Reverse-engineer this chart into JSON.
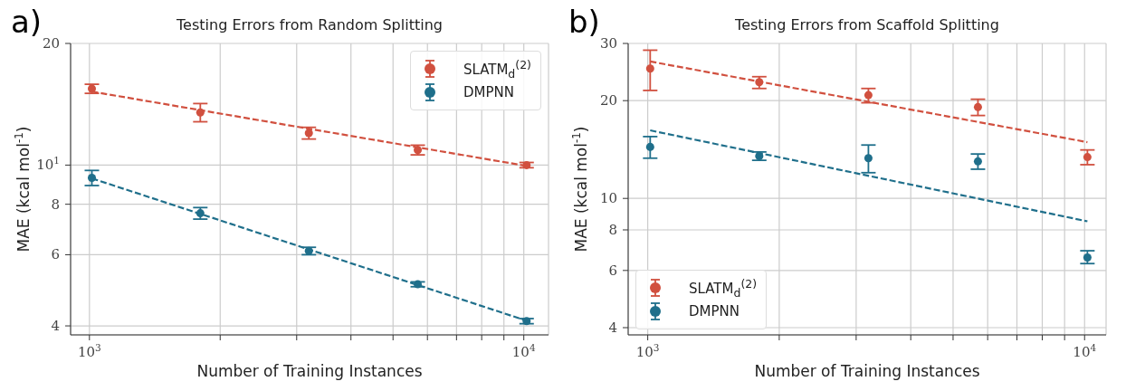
{
  "chart_data": [
    {
      "type": "scatter",
      "title": "Testing Errors from Random Splitting",
      "xlabel": "Number of Training Instances",
      "ylabel": "MAE (kcal mol$^{-1}$)",
      "annotations": [
        "a)"
      ],
      "log": "xy",
      "grid": true,
      "legend": "top right",
      "xlim": [
        905,
        11400
      ],
      "ylim": [
        3.8,
        20
      ],
      "xticks": [
        {
          "value": 1000,
          "label": "10$^{3}$"
        },
        {
          "value": 2000,
          "label": null
        },
        {
          "value": 3000,
          "label": null
        },
        {
          "value": 4000,
          "label": null
        },
        {
          "value": 5000,
          "label": null
        },
        {
          "value": 6000,
          "label": null
        },
        {
          "value": 7000,
          "label": null
        },
        {
          "value": 8000,
          "label": null
        },
        {
          "value": 9000,
          "label": null
        },
        {
          "value": 10000,
          "label": "10$^{4}$"
        }
      ],
      "yticks": [
        4,
        6,
        8,
        {
          "value": 10,
          "label": "10$^{1}$"
        },
        20
      ],
      "series": [
        {
          "name": "SLATM$_{d}$$^{(2)}$",
          "color": "#d1503f",
          "marker": "circle",
          "x": [
            1013,
            1800,
            3200,
            5700,
            10150
          ],
          "values": [
            15.45,
            13.5,
            12.0,
            10.9,
            10.0
          ],
          "errors": [
            [
              15.05,
              15.85
            ],
            [
              12.8,
              14.2
            ],
            [
              11.6,
              12.4
            ],
            [
              10.6,
              11.2
            ],
            [
              9.85,
              10.15
            ]
          ]
        },
        {
          "name": "DMPNN",
          "color": "#1f6f8b",
          "marker": "circle",
          "x": [
            1013,
            1800,
            3200,
            5700,
            10150
          ],
          "values": [
            9.3,
            7.6,
            6.13,
            5.07,
            4.11
          ],
          "errors": [
            [
              8.9,
              9.7
            ],
            [
              7.35,
              7.85
            ],
            [
              6.0,
              6.26
            ],
            [
              5.0,
              5.14
            ],
            [
              4.05,
              4.17
            ]
          ]
        },
        {
          "type": "line",
          "color": "#d1503f",
          "line_style": "dashed",
          "marker": "none",
          "x": [
            1013,
            10150
          ],
          "values": [
            15.2,
            9.95
          ]
        },
        {
          "type": "line",
          "color": "#1f6f8b",
          "line_style": "dashed",
          "marker": "none",
          "x": [
            1013,
            10150
          ],
          "values": [
            9.27,
            4.12
          ]
        }
      ]
    },
    {
      "type": "scatter",
      "title": "Testing Errors from Scaffold Splitting",
      "xlabel": "Number of Training Instances",
      "ylabel": "MAE (kcal mol$^{-1}$)",
      "annotations": [
        "b)"
      ],
      "log": "xy",
      "grid": true,
      "legend": "bottom left",
      "xlim": [
        902,
        11200
      ],
      "ylim": [
        3.8,
        30
      ],
      "xticks": [
        {
          "value": 1000,
          "label": "10$^{3}$"
        },
        {
          "value": 2000,
          "label": null
        },
        {
          "value": 3000,
          "label": null
        },
        {
          "value": 4000,
          "label": null
        },
        {
          "value": 5000,
          "label": null
        },
        {
          "value": 6000,
          "label": null
        },
        {
          "value": 7000,
          "label": null
        },
        {
          "value": 8000,
          "label": null
        },
        {
          "value": 9000,
          "label": null
        },
        {
          "value": 10000,
          "label": "10$^{4}$"
        }
      ],
      "yticks": [
        4,
        6,
        8,
        10,
        20,
        30
      ],
      "series": [
        {
          "name": "SLATM$_{d}$$^{(2)}$",
          "color": "#d1503f",
          "marker": "circle",
          "x": [
            1013,
            1800,
            3200,
            5700,
            10150
          ],
          "values": [
            25.1,
            22.8,
            20.8,
            19.1,
            13.4
          ],
          "errors": [
            [
              21.5,
              28.6
            ],
            [
              21.8,
              23.7
            ],
            [
              19.7,
              21.8
            ],
            [
              18.0,
              20.2
            ],
            [
              12.7,
              14.1
            ]
          ]
        },
        {
          "name": "DMPNN",
          "color": "#1f6f8b",
          "marker": "circle",
          "x": [
            1013,
            1800,
            3200,
            5700,
            10150
          ],
          "values": [
            14.4,
            13.5,
            13.3,
            13.0,
            6.58
          ],
          "errors": [
            [
              13.3,
              15.5
            ],
            [
              13.1,
              13.9
            ],
            [
              12.0,
              14.6
            ],
            [
              12.3,
              13.7
            ],
            [
              6.3,
              6.9
            ]
          ]
        },
        {
          "type": "line",
          "color": "#d1503f",
          "line_style": "dashed",
          "marker": "none",
          "x": [
            1013,
            10150
          ],
          "values": [
            26.4,
            14.9
          ]
        },
        {
          "type": "line",
          "color": "#1f6f8b",
          "line_style": "dashed",
          "marker": "none",
          "x": [
            1013,
            10150
          ],
          "values": [
            16.2,
            8.5
          ]
        }
      ]
    }
  ]
}
